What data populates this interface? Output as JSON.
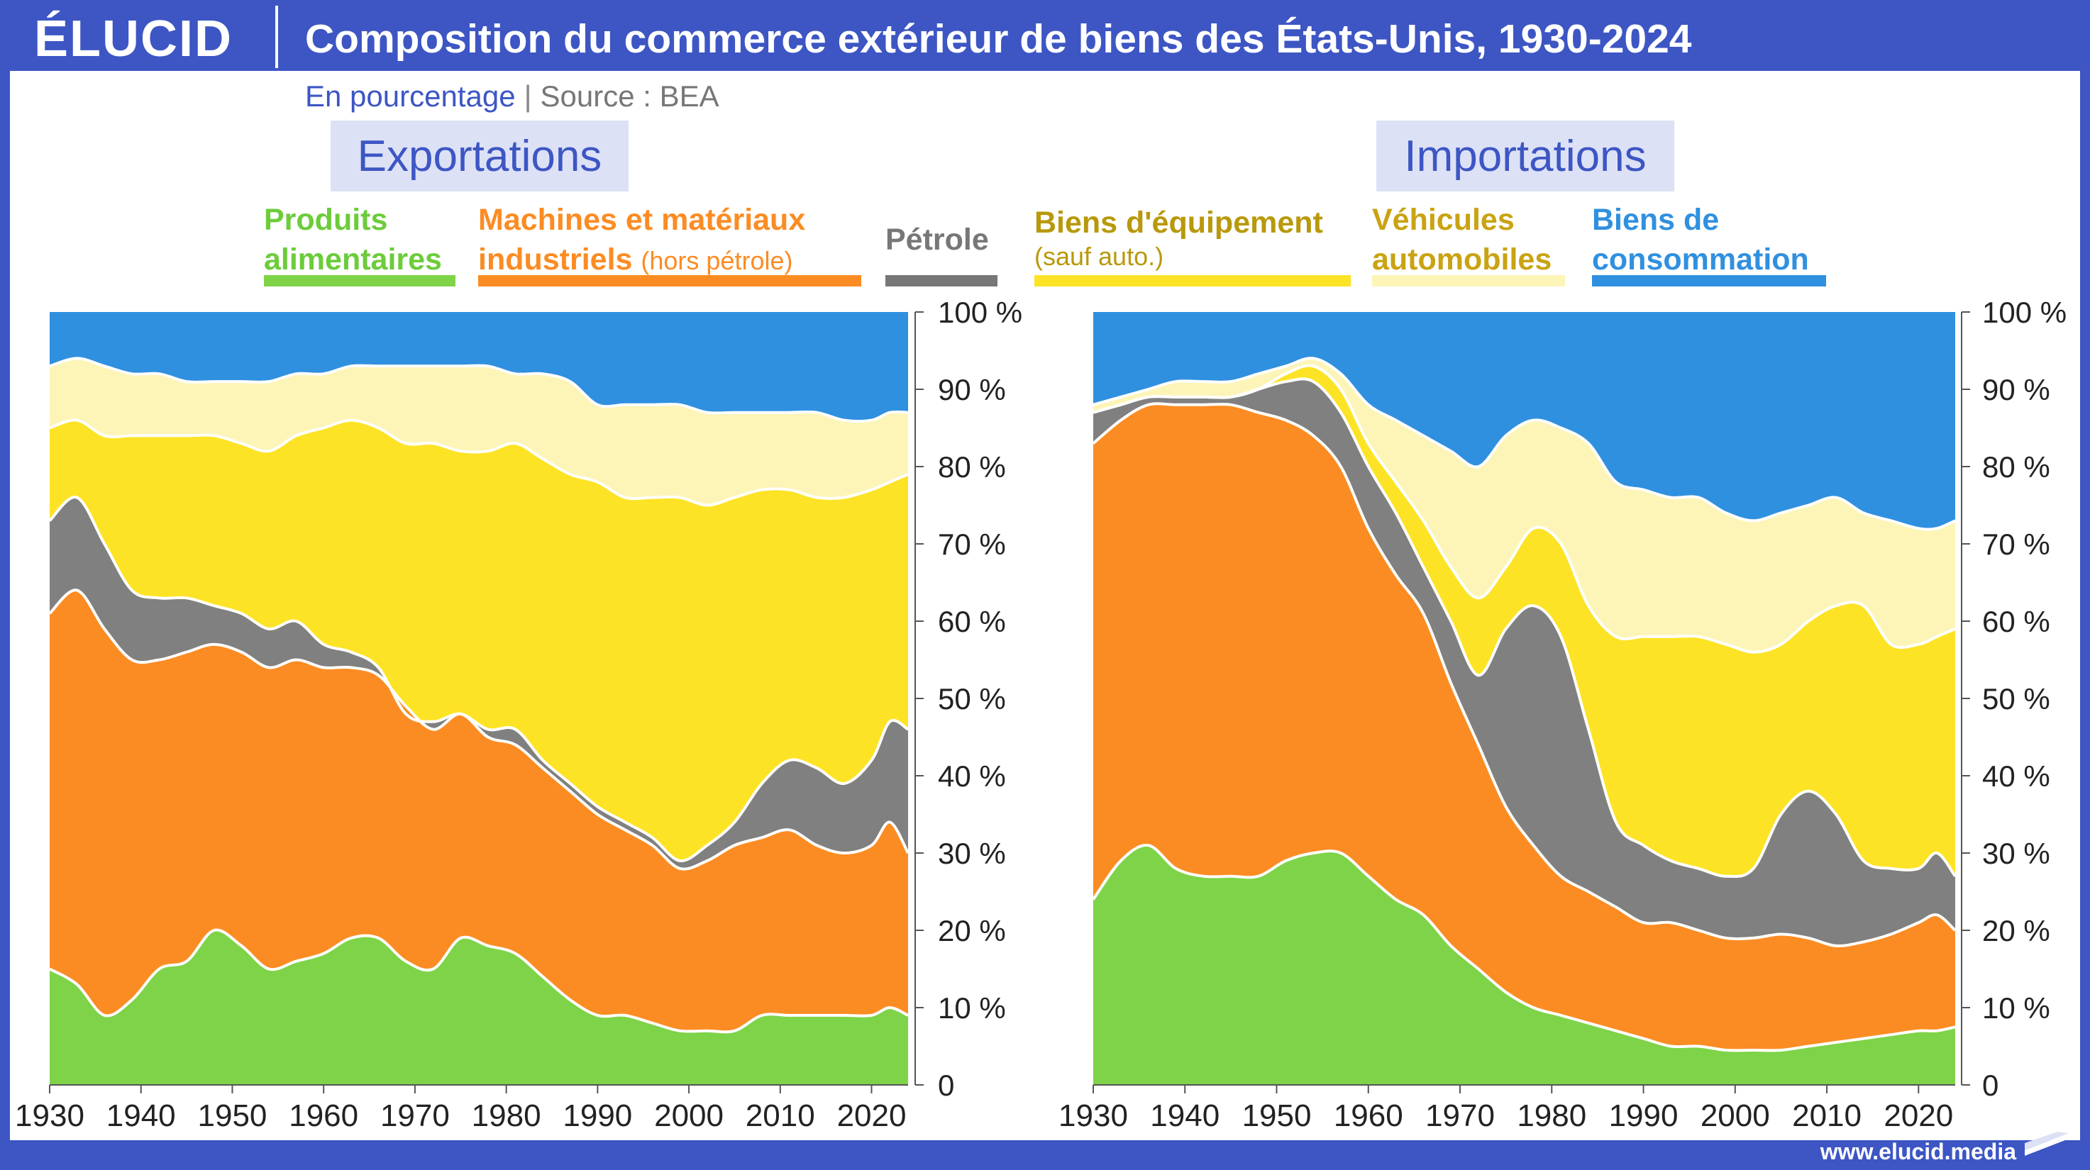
{
  "header": {
    "logo": "ÉLUCID",
    "title": "Composition du commerce extérieur de biens des États-Unis, 1930-2024",
    "subtitle": "En pourcentage",
    "source": "Source : BEA",
    "url": "www.elucid.media"
  },
  "legend": {
    "food": {
      "line1": "Produits",
      "line2": "alimentaires"
    },
    "industrial": {
      "line1": "Machines et matériaux",
      "line2": "industriels",
      "note": "(hors pétrole)"
    },
    "petroleum": {
      "line1": "Pétrole"
    },
    "capital": {
      "line1": "Biens d'équipement",
      "note": "(sauf auto.)"
    },
    "auto": {
      "line1": "Véhicules",
      "line2": "automobiles"
    },
    "consumer": {
      "line1": "Biens de",
      "line2": "consommation"
    }
  },
  "colors": {
    "food": "#7ed348",
    "industrial": "#fb8c23",
    "petroleum": "#808080",
    "capital": "#fde325",
    "auto": "#fdf5b8",
    "consumer": "#3090e0",
    "accent": "#3d56c4"
  },
  "chart_data": [
    {
      "type": "area",
      "stacked": true,
      "title": "Exportations",
      "x": [
        1930,
        1933,
        1936,
        1939,
        1942,
        1945,
        1948,
        1951,
        1954,
        1957,
        1960,
        1963,
        1966,
        1969,
        1972,
        1975,
        1978,
        1981,
        1984,
        1987,
        1990,
        1993,
        1996,
        1999,
        2002,
        2005,
        2008,
        2011,
        2014,
        2017,
        2020,
        2022,
        2024
      ],
      "cumulative_tops": {
        "food": [
          15,
          13,
          9,
          11,
          15,
          16,
          20,
          18,
          15,
          16,
          17,
          19,
          19,
          16,
          15,
          19,
          18,
          17,
          14,
          11,
          9,
          9,
          8,
          7,
          7,
          7,
          9,
          9,
          9,
          9,
          9,
          10,
          9
        ],
        "industrial": [
          61,
          64,
          59,
          55,
          55,
          56,
          57,
          56,
          54,
          55,
          54,
          54,
          53,
          49,
          46,
          48,
          45,
          44,
          41,
          38,
          35,
          33,
          31,
          28,
          29,
          31,
          32,
          33,
          31,
          30,
          31,
          34,
          30
        ],
        "petroleum": [
          73,
          76,
          70,
          64,
          63,
          63,
          62,
          61,
          59,
          60,
          57,
          56,
          54,
          48,
          47,
          48,
          46,
          46,
          42,
          39,
          36,
          34,
          32,
          29,
          31,
          34,
          39,
          42,
          41,
          39,
          42,
          47,
          46
        ],
        "capital": [
          85,
          86,
          84,
          84,
          84,
          84,
          84,
          83,
          82,
          84,
          85,
          86,
          85,
          83,
          83,
          82,
          82,
          83,
          81,
          79,
          78,
          76,
          76,
          76,
          75,
          76,
          77,
          77,
          76,
          76,
          77,
          78,
          79
        ],
        "auto": [
          93,
          94,
          93,
          92,
          92,
          91,
          91,
          91,
          91,
          92,
          92,
          93,
          93,
          93,
          93,
          93,
          93,
          92,
          92,
          91,
          88,
          88,
          88,
          88,
          87,
          87,
          87,
          87,
          87,
          86,
          86,
          87,
          87
        ],
        "consumer": [
          100,
          100,
          100,
          100,
          100,
          100,
          100,
          100,
          100,
          100,
          100,
          100,
          100,
          100,
          100,
          100,
          100,
          100,
          100,
          100,
          100,
          100,
          100,
          100,
          100,
          100,
          100,
          100,
          100,
          100,
          100,
          100,
          100
        ]
      },
      "xlim": [
        1930,
        2024
      ],
      "ylim": [
        0,
        100
      ],
      "yticks": [
        "0",
        "10 %",
        "20 %",
        "30 %",
        "40 %",
        "50 %",
        "60 %",
        "70 %",
        "80 %",
        "90 %",
        "100 %"
      ],
      "xticks": [
        "1930",
        "1940",
        "1950",
        "1960",
        "1970",
        "1980",
        "1990",
        "2000",
        "2010",
        "2020"
      ]
    },
    {
      "type": "area",
      "stacked": true,
      "title": "Importations",
      "x": [
        1930,
        1933,
        1936,
        1939,
        1942,
        1945,
        1948,
        1951,
        1954,
        1957,
        1960,
        1963,
        1966,
        1969,
        1972,
        1975,
        1978,
        1981,
        1984,
        1987,
        1990,
        1993,
        1996,
        1999,
        2002,
        2005,
        2008,
        2011,
        2014,
        2017,
        2020,
        2022,
        2024
      ],
      "cumulative_tops": {
        "food": [
          24,
          29,
          31,
          28,
          27,
          27,
          27,
          29,
          30,
          30,
          27,
          24,
          22,
          18,
          15,
          12,
          10,
          9,
          8,
          7,
          6,
          5,
          5,
          4.5,
          4.5,
          4.5,
          5,
          5.5,
          6,
          6.5,
          7,
          7,
          7.5
        ],
        "industrial": [
          83,
          86,
          88,
          88,
          88,
          88,
          87,
          86,
          84,
          80,
          72,
          66,
          61,
          52,
          44,
          36,
          31,
          27,
          25,
          23,
          21,
          21,
          20,
          19,
          19,
          19.5,
          19,
          18,
          18.5,
          19.5,
          21,
          22,
          20
        ],
        "petroleum": [
          87,
          88,
          89,
          89,
          89,
          89,
          90,
          91,
          91,
          87,
          80,
          74,
          67,
          60,
          53,
          59,
          62,
          58,
          46,
          34,
          31,
          29,
          28,
          27,
          28,
          35,
          38,
          35,
          29,
          28,
          28,
          30,
          27
        ],
        "capital": [
          87,
          88,
          89,
          89,
          89,
          89,
          90,
          92,
          93,
          90,
          83,
          78,
          73,
          67,
          63,
          67,
          72,
          70,
          62,
          58,
          58,
          58,
          58,
          57,
          56,
          57,
          60,
          62,
          62,
          57,
          57,
          58,
          59
        ],
        "auto": [
          88,
          89,
          90,
          91,
          91,
          91,
          92,
          93,
          94,
          92,
          88,
          86,
          84,
          82,
          80,
          84,
          86,
          85,
          83,
          78,
          77,
          76,
          76,
          74,
          73,
          74,
          75,
          76,
          74,
          73,
          72,
          72,
          73
        ],
        "consumer": [
          100,
          100,
          100,
          100,
          100,
          100,
          100,
          100,
          100,
          100,
          100,
          100,
          100,
          100,
          100,
          100,
          100,
          100,
          100,
          100,
          100,
          100,
          100,
          100,
          100,
          100,
          100,
          100,
          100,
          100,
          100,
          100,
          100
        ]
      },
      "xlim": [
        1930,
        2024
      ],
      "ylim": [
        0,
        100
      ],
      "yticks": [
        "0",
        "10 %",
        "20 %",
        "30 %",
        "40 %",
        "50 %",
        "60 %",
        "70 %",
        "80 %",
        "90 %",
        "100 %"
      ],
      "xticks": [
        "1930",
        "1940",
        "1950",
        "1960",
        "1970",
        "1980",
        "1990",
        "2000",
        "2010",
        "2020"
      ]
    }
  ]
}
